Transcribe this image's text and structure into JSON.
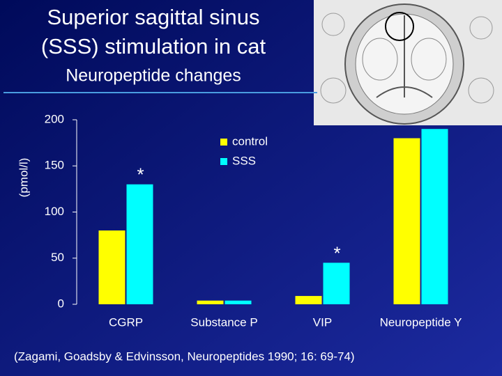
{
  "chart_data": {
    "type": "bar",
    "title": "Superior sagittal sinus (SSS) stimulation in cat",
    "subtitle": "Neuropeptide changes",
    "y_label": "(pmol/l)",
    "categories": [
      "CGRP",
      "Substance P",
      "VIP",
      "Neuropeptide Y"
    ],
    "series": [
      {
        "name": "control",
        "color": "#ffff00",
        "values": [
          80,
          4,
          9,
          180
        ]
      },
      {
        "name": "SSS",
        "color": "#00ffff",
        "values": [
          130,
          4,
          45,
          190
        ]
      }
    ],
    "annotations": [
      "*",
      "*"
    ],
    "ylim": [
      0,
      200
    ],
    "yticks": [
      0,
      50,
      100,
      150,
      200
    ],
    "source": "(Zagami, Goadsby & Edvinsson, Neuropeptides 1990; 16: 69-74)"
  }
}
